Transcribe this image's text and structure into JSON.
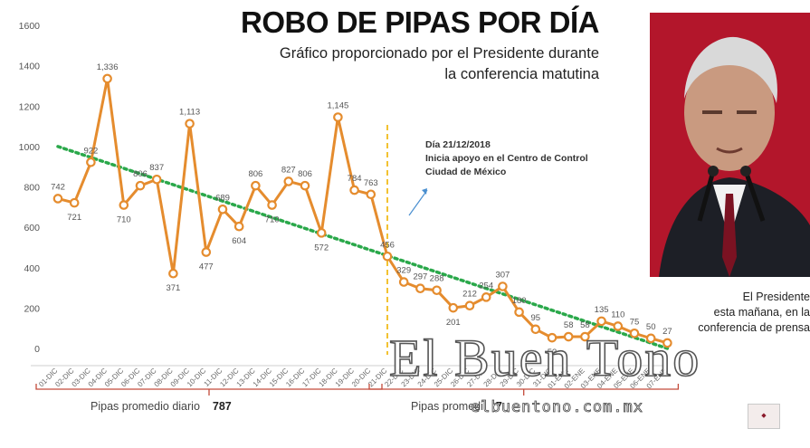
{
  "title": "ROBO DE PIPAS POR DÍA",
  "subtitle_line1": "Gráfico proporcionado por el Presidente durante",
  "subtitle_line2": "la conferencia matutina",
  "annotation": {
    "line1": "Día 21/12/2018",
    "line2": "Inicia apoyo en el Centro de Control",
    "line3": "Ciudad de México"
  },
  "averages": [
    {
      "label": "Pipas promedio diario",
      "value": "787"
    },
    {
      "label": "Pipas promedi",
      "value": "7"
    }
  ],
  "photo_caption": [
    "El Presidente",
    "esta mañana, en la",
    "conferencia de prensa"
  ],
  "watermark": "El Buen Tono",
  "watermark_url": "elbuentono.com.mx",
  "colors": {
    "line": "#e58c2e",
    "trend": "#2aa84a",
    "divider": "#f2c232",
    "bracket": "#c34a3a",
    "photo_bg": "#b3162b"
  },
  "chart_data": {
    "type": "line",
    "title": "ROBO DE PIPAS POR DÍA",
    "ylim": [
      0,
      1600
    ],
    "yticks": [
      0,
      200,
      400,
      600,
      800,
      1000,
      1200,
      1400,
      1600
    ],
    "grid": false,
    "categories": [
      "01-DIC",
      "02-DIC",
      "03-DIC",
      "04-DIC",
      "05-DIC",
      "06-DIC",
      "07-DIC",
      "08-DIC",
      "09-DIC",
      "10-DIC",
      "11-DIC",
      "12-DIC",
      "13-DIC",
      "14-DIC",
      "15-DIC",
      "16-DIC",
      "17-DIC",
      "18-DIC",
      "19-DIC",
      "20-DIC",
      "21-DIC",
      "22-DIC",
      "23-DIC",
      "24-DIC",
      "25-DIC",
      "26-DIC",
      "27-DIC",
      "28-DIC",
      "29-DIC",
      "30-DIC",
      "31-DIC",
      "01-ENE",
      "02-ENE",
      "03-ENE",
      "04-ENE",
      "05-ENE",
      "06-ENE",
      "07-ENE"
    ],
    "values": [
      742,
      721,
      922,
      1336,
      710,
      806,
      837,
      371,
      1113,
      477,
      689,
      604,
      806,
      710,
      827,
      806,
      572,
      1145,
      784,
      763,
      456,
      329,
      297,
      288,
      201,
      212,
      254,
      307,
      180,
      95,
      53,
      58,
      58,
      135,
      110,
      75,
      50,
      27
    ],
    "labels": [
      "742",
      "721",
      "922",
      "1,336",
      "710",
      "806",
      "837",
      "371",
      "1,113",
      "477",
      "689",
      "604",
      "806",
      "710",
      "827",
      "806",
      "572",
      "1,145",
      "784",
      "763",
      "456",
      "329",
      "297",
      "288",
      "201",
      "212",
      "254",
      "307",
      "180",
      "95",
      "53",
      "58",
      "58",
      "135",
      "110",
      "75",
      "50",
      "27"
    ],
    "trend": [
      1000,
      0
    ]
  }
}
